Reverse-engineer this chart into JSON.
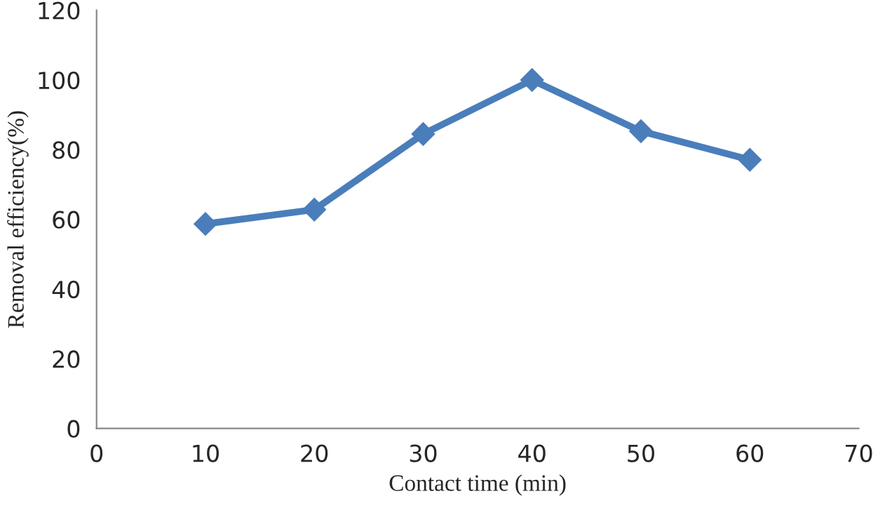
{
  "chart_data": {
    "type": "line",
    "xlabel": "Contact time (min)",
    "ylabel": "Removal efficiency(%)",
    "x": [
      10,
      20,
      30,
      40,
      50,
      60
    ],
    "series": [
      {
        "color": "#4a7ebb",
        "values": [
          58.7,
          62.8,
          84.5,
          100,
          85.3,
          77.1
        ]
      }
    ],
    "xlim": [
      0,
      70
    ],
    "xticks": [
      0,
      10,
      20,
      30,
      40,
      50,
      60,
      70
    ],
    "ylim": [
      0,
      120
    ],
    "yticks": [
      0,
      20,
      40,
      60,
      80,
      100,
      120
    ],
    "grid": false,
    "marker": "diamond",
    "line_style": "solid"
  }
}
